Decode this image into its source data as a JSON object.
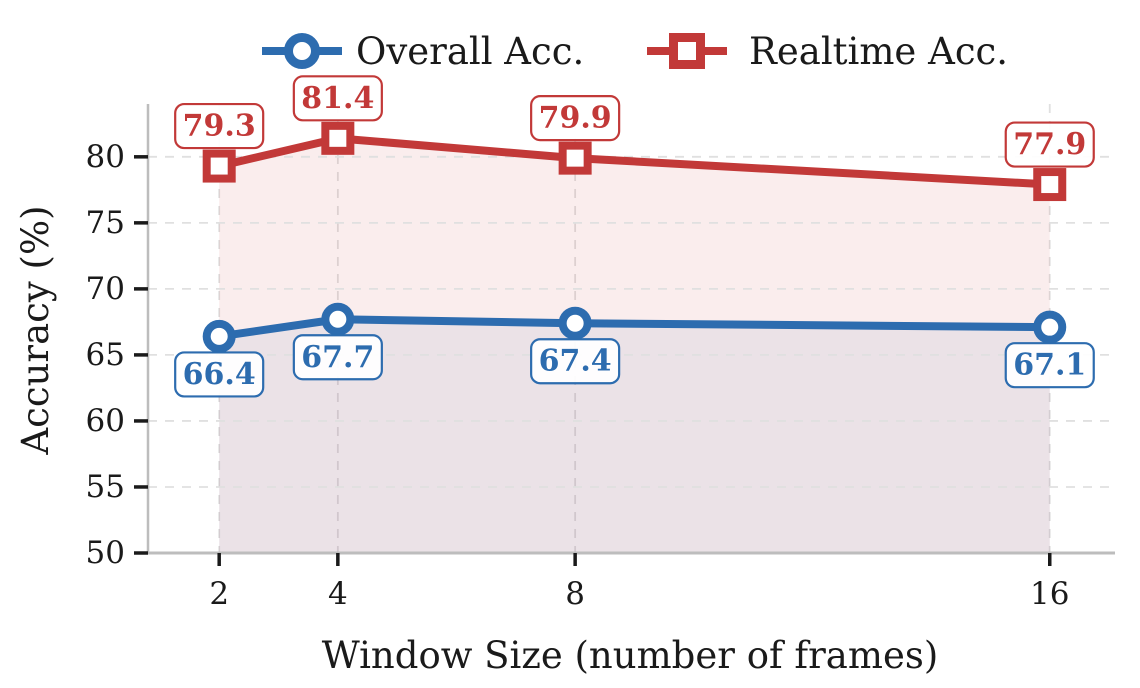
{
  "chart_data": {
    "type": "line",
    "title": "",
    "xlabel": "Window Size (number of frames)",
    "ylabel": "Accuracy (%)",
    "x": [
      2,
      4,
      8,
      16
    ],
    "xtick_labels": [
      "2",
      "4",
      "8",
      "16"
    ],
    "yticks": [
      50,
      55,
      60,
      65,
      70,
      75,
      80
    ],
    "ytick_labels": [
      "50",
      "55",
      "60",
      "65",
      "70",
      "75",
      "80"
    ],
    "xlim": [
      0.8,
      17.1
    ],
    "ylim": [
      50,
      84
    ],
    "grid": true,
    "grid_style": "dashed",
    "legend_position": "top-center",
    "background_color": "#ffffff",
    "grid_color": "#e0e0e0",
    "spine_color": "#bdbdbd",
    "tick_color": "#1a1a1a",
    "series": [
      {
        "name": "Overall Acc.",
        "color": "#2D6CAF",
        "fill_color": "rgba(46,108,175,0.08)",
        "marker": "circle",
        "values": [
          66.4,
          67.7,
          67.4,
          67.1
        ],
        "data_labels": [
          "66.4",
          "67.7",
          "67.4",
          "67.1"
        ],
        "label_position": "below"
      },
      {
        "name": "Realtime Acc.",
        "color": "#C23938",
        "fill_color": "rgba(195,57,56,0.09)",
        "marker": "square",
        "values": [
          79.3,
          81.4,
          79.9,
          77.9
        ],
        "data_labels": [
          "79.3",
          "81.4",
          "79.9",
          "77.9"
        ],
        "label_position": "above"
      }
    ]
  }
}
